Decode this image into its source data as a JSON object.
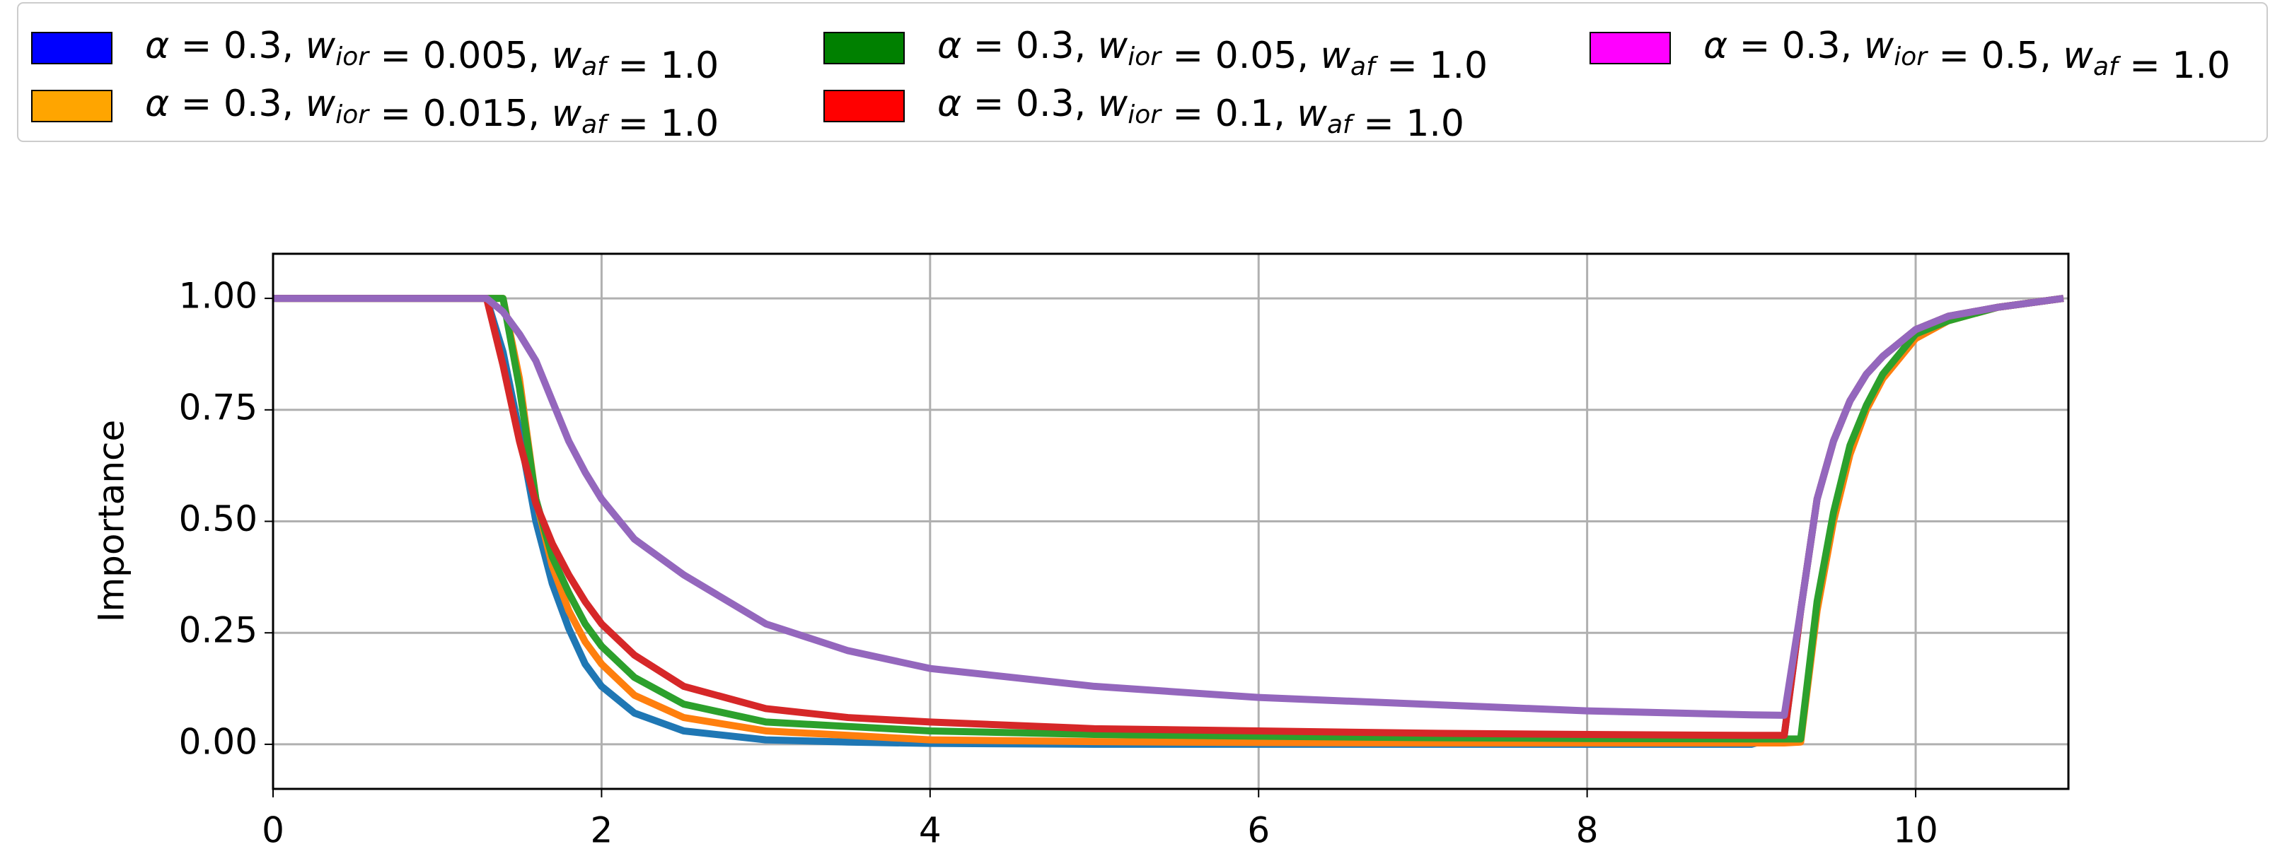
{
  "chart_data": {
    "type": "line",
    "y_label": "Importance",
    "x": [
      0,
      1.3,
      1.4,
      1.5,
      1.6,
      1.7,
      1.8,
      1.9,
      2,
      2.2,
      2.5,
      3,
      3.5,
      4,
      5,
      6,
      7,
      8,
      9,
      9.2,
      9.3,
      9.4,
      9.5,
      9.6,
      9.7,
      9.8,
      10,
      10.2,
      10.5,
      10.9
    ],
    "series": [
      {
        "name": "α = 0.3, wior = 0.005, waf = 1.0",
        "color": "#1f77b4",
        "legend_color": "#0000ff",
        "values": [
          1,
          1,
          0.88,
          0.7,
          0.5,
          0.36,
          0.26,
          0.18,
          0.13,
          0.07,
          0.03,
          0.01,
          0.005,
          0.002,
          0,
          0,
          0,
          0,
          0,
          0.02,
          0.3,
          0.55,
          0.68,
          0.77,
          0.83,
          0.87,
          0.93,
          0.96,
          0.98,
          1.0
        ]
      },
      {
        "name": "α = 0.3, wior = 0.015, waf = 1.0",
        "color": "#ff7f0e",
        "legend_color": "#ffa500",
        "values": [
          1,
          1,
          1,
          0.82,
          0.55,
          0.4,
          0.3,
          0.23,
          0.18,
          0.11,
          0.06,
          0.03,
          0.02,
          0.01,
          0.006,
          0.004,
          0.003,
          0.003,
          0.003,
          0.003,
          0.005,
          0.3,
          0.5,
          0.65,
          0.75,
          0.82,
          0.91,
          0.95,
          0.98,
          1.0
        ]
      },
      {
        "name": "α = 0.3, wior = 0.05, waf = 1.0",
        "color": "#2ca02c",
        "legend_color": "#008000",
        "values": [
          1,
          1,
          1,
          0.8,
          0.55,
          0.42,
          0.34,
          0.27,
          0.22,
          0.15,
          0.09,
          0.05,
          0.04,
          0.03,
          0.022,
          0.018,
          0.015,
          0.013,
          0.012,
          0.012,
          0.012,
          0.32,
          0.52,
          0.67,
          0.76,
          0.83,
          0.92,
          0.95,
          0.98,
          1.0
        ]
      },
      {
        "name": "α = 0.3, wior = 0.1, waf = 1.0",
        "color": "#d62728",
        "legend_color": "#ff0000",
        "values": [
          1,
          1,
          0.85,
          0.68,
          0.54,
          0.45,
          0.38,
          0.32,
          0.27,
          0.2,
          0.13,
          0.08,
          0.06,
          0.05,
          0.035,
          0.03,
          0.025,
          0.022,
          0.02,
          0.02,
          0.3,
          0.55,
          0.68,
          0.77,
          0.83,
          0.87,
          0.93,
          0.96,
          0.98,
          1.0
        ]
      },
      {
        "name": "α = 0.3, wior = 0.5, waf = 1.0",
        "color": "#9467bd",
        "legend_color": "#ff00ff",
        "values": [
          1,
          1,
          0.97,
          0.92,
          0.86,
          0.77,
          0.68,
          0.61,
          0.55,
          0.46,
          0.38,
          0.27,
          0.21,
          0.17,
          0.13,
          0.105,
          0.09,
          0.075,
          0.066,
          0.065,
          0.3,
          0.55,
          0.68,
          0.77,
          0.83,
          0.87,
          0.93,
          0.96,
          0.98,
          1.0
        ]
      }
    ],
    "xlim": [
      0,
      10.93
    ],
    "xticks": [
      0,
      2,
      4,
      6,
      8,
      10
    ],
    "ylim": [
      -0.1,
      1.1
    ],
    "yticks": [
      {
        "value": 0,
        "label": "0.00"
      },
      {
        "value": 0.25,
        "label": "0.25"
      },
      {
        "value": 0.5,
        "label": "0.50"
      },
      {
        "value": 0.75,
        "label": "0.75"
      },
      {
        "value": 1,
        "label": "1.00"
      }
    ],
    "grid": true,
    "legend": "top"
  }
}
